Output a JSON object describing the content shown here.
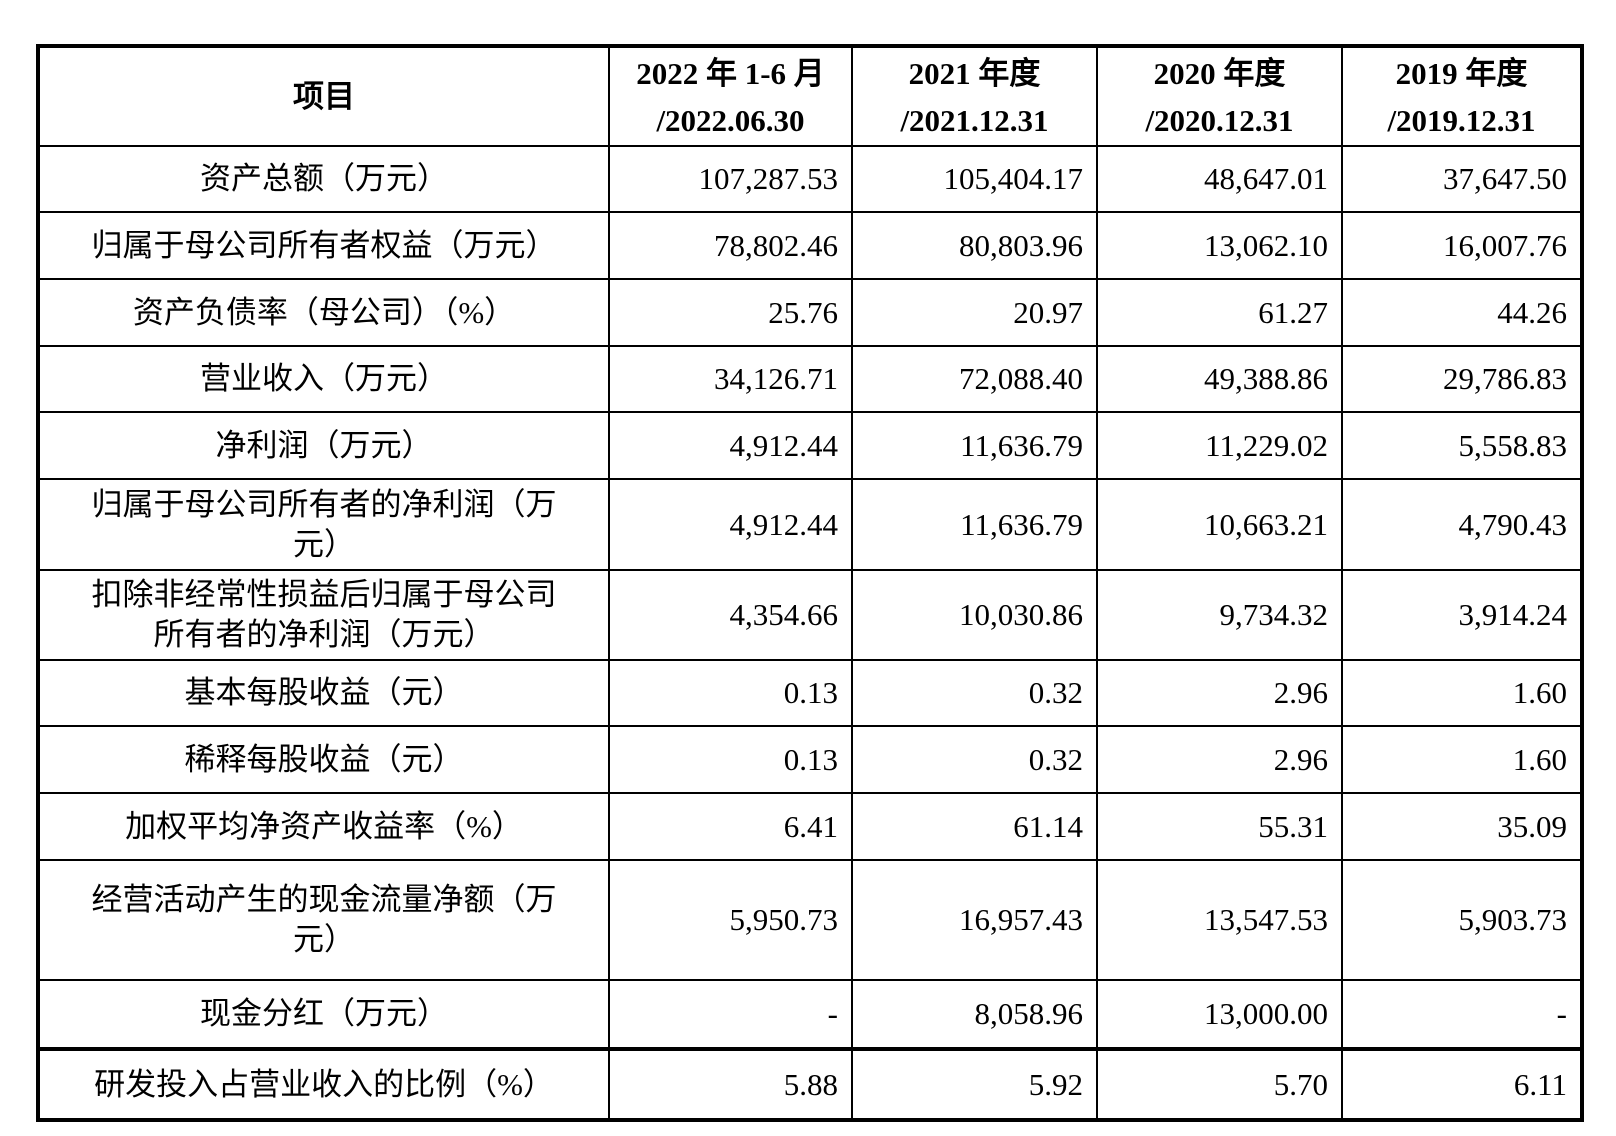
{
  "table": {
    "title_semantic": "financial-summary-table",
    "colors": {
      "border": "#000000",
      "background": "#ffffff",
      "text": "#000000"
    },
    "header": {
      "item_label": "项目",
      "periods": [
        "2022 年 1-6 月\n/2022.06.30",
        "2021 年度\n/2021.12.31",
        "2020 年度\n/2020.12.31",
        "2019 年度\n/2019.12.31"
      ]
    },
    "rows": [
      {
        "label": "资产总额（万元）",
        "values": [
          "107,287.53",
          "105,404.17",
          "48,647.01",
          "37,647.50"
        ]
      },
      {
        "label": "归属于母公司所有者权益（万元）",
        "values": [
          "78,802.46",
          "80,803.96",
          "13,062.10",
          "16,007.76"
        ]
      },
      {
        "label": "资产负债率（母公司）（%）",
        "values": [
          "25.76",
          "20.97",
          "61.27",
          "44.26"
        ]
      },
      {
        "label": "营业收入（万元）",
        "values": [
          "34,126.71",
          "72,088.40",
          "49,388.86",
          "29,786.83"
        ]
      },
      {
        "label": "净利润（万元）",
        "values": [
          "4,912.44",
          "11,636.79",
          "11,229.02",
          "5,558.83"
        ]
      },
      {
        "label": "归属于母公司所有者的净利润（万\n元）",
        "values": [
          "4,912.44",
          "11,636.79",
          "10,663.21",
          "4,790.43"
        ]
      },
      {
        "label": "扣除非经常性损益后归属于母公司\n所有者的净利润（万元）",
        "values": [
          "4,354.66",
          "10,030.86",
          "9,734.32",
          "3,914.24"
        ]
      },
      {
        "label": "基本每股收益（元）",
        "values": [
          "0.13",
          "0.32",
          "2.96",
          "1.60"
        ]
      },
      {
        "label": "稀释每股收益（元）",
        "values": [
          "0.13",
          "0.32",
          "2.96",
          "1.60"
        ]
      },
      {
        "label": "加权平均净资产收益率（%）",
        "values": [
          "6.41",
          "61.14",
          "55.31",
          "35.09"
        ]
      },
      {
        "label": "经营活动产生的现金流量净额（万\n元）",
        "values": [
          "5,950.73",
          "16,957.43",
          "13,547.53",
          "5,903.73"
        ]
      },
      {
        "label": "现金分红（万元）",
        "values": [
          "-",
          "8,058.96",
          "13,000.00",
          "-"
        ]
      },
      {
        "label": "研发投入占营业收入的比例（%）",
        "values": [
          "5.88",
          "5.92",
          "5.70",
          "6.11"
        ]
      }
    ]
  }
}
